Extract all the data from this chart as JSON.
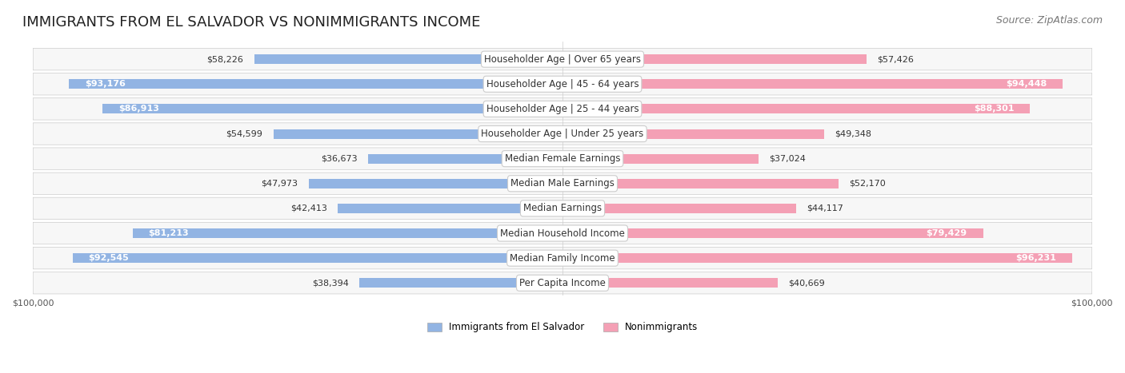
{
  "title": "IMMIGRANTS FROM EL SALVADOR VS NONIMMIGRANTS INCOME",
  "source": "Source: ZipAtlas.com",
  "categories": [
    "Per Capita Income",
    "Median Family Income",
    "Median Household Income",
    "Median Earnings",
    "Median Male Earnings",
    "Median Female Earnings",
    "Householder Age | Under 25 years",
    "Householder Age | 25 - 44 years",
    "Householder Age | 45 - 64 years",
    "Householder Age | Over 65 years"
  ],
  "immigrants": [
    38394,
    92545,
    81213,
    42413,
    47973,
    36673,
    54599,
    86913,
    93176,
    58226
  ],
  "nonimmigrants": [
    40669,
    96231,
    79429,
    44117,
    52170,
    37024,
    49348,
    88301,
    94448,
    57426
  ],
  "max_value": 100000,
  "immigrant_color": "#92b4e3",
  "immigrant_color_dark": "#6b96d6",
  "nonimmigrant_color": "#f4a0b5",
  "nonimmigrant_color_dark": "#e87a9a",
  "immigrant_label": "Immigrants from El Salvador",
  "nonimmigrant_label": "Nonimmigrants",
  "background_color": "#ffffff",
  "row_bg_light": "#f5f5f5",
  "row_bg_dark": "#ebebeb",
  "title_fontsize": 13,
  "source_fontsize": 9,
  "label_fontsize": 8.5,
  "value_fontsize": 8,
  "axis_label_fontsize": 8
}
